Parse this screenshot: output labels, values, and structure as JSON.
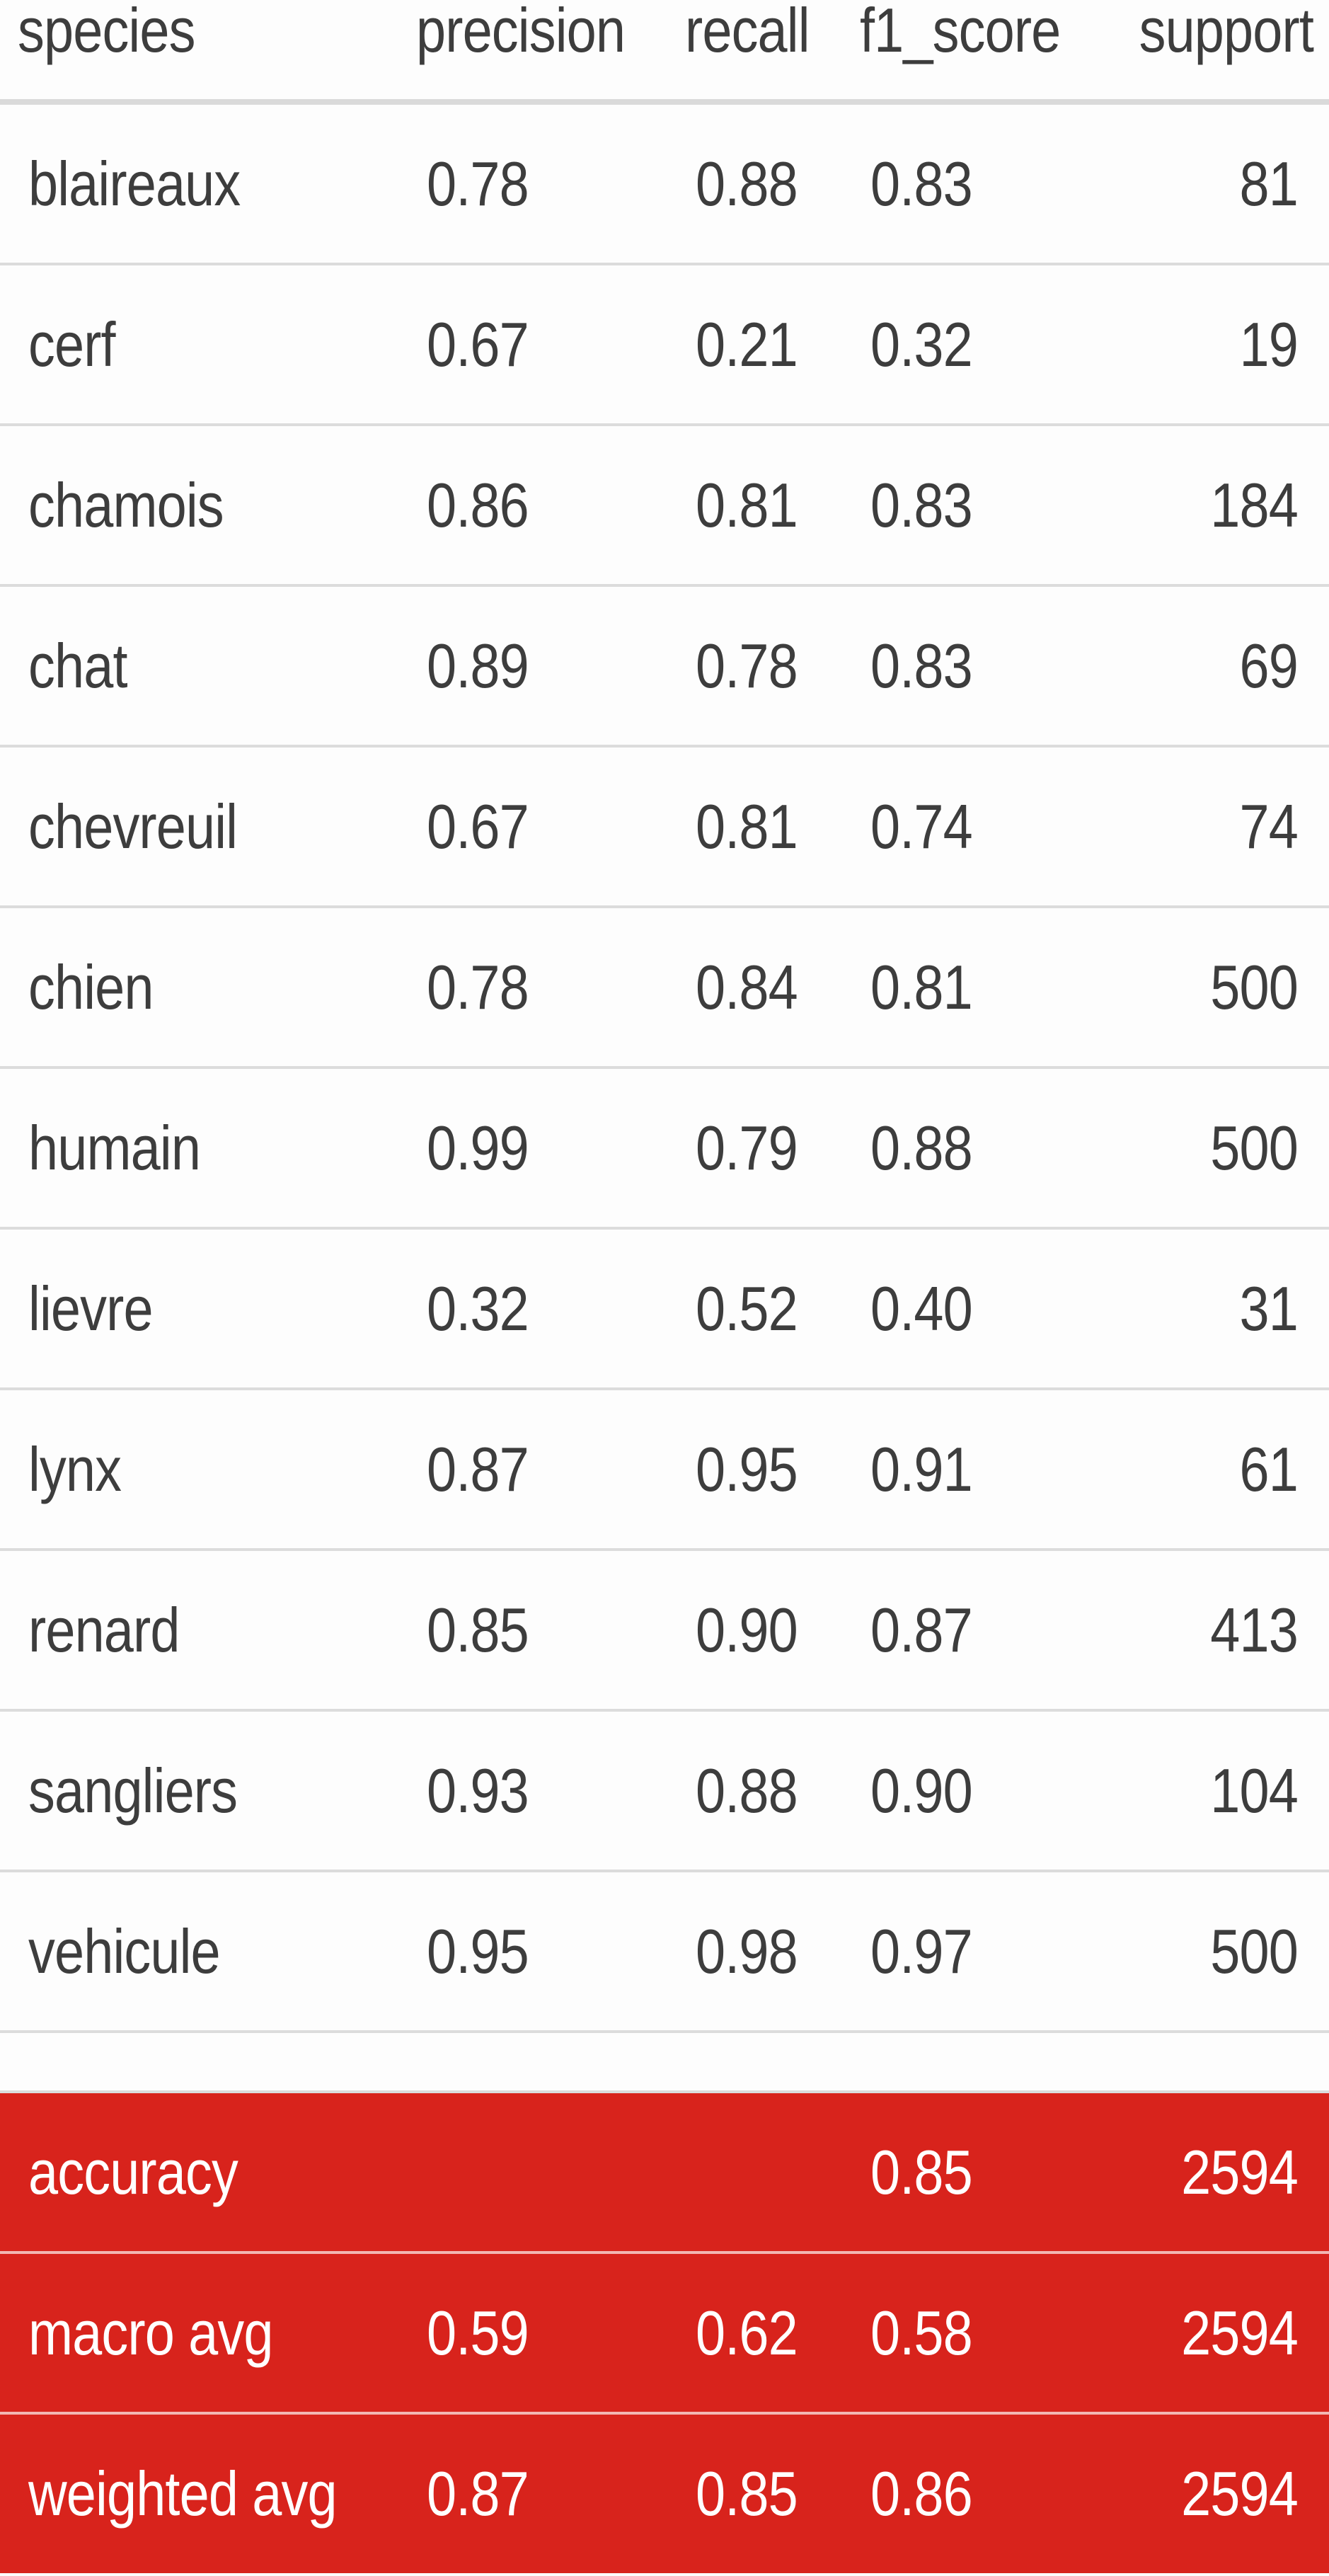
{
  "columns": {
    "species": "species",
    "precision": "precision",
    "recall": "recall",
    "f1_score": "f1_score",
    "support": "support"
  },
  "rows": [
    {
      "species": "blaireaux",
      "precision": "0.78",
      "recall": "0.88",
      "f1_score": "0.83",
      "support": "81"
    },
    {
      "species": "cerf",
      "precision": "0.67",
      "recall": "0.21",
      "f1_score": "0.32",
      "support": "19"
    },
    {
      "species": "chamois",
      "precision": "0.86",
      "recall": "0.81",
      "f1_score": "0.83",
      "support": "184"
    },
    {
      "species": "chat",
      "precision": "0.89",
      "recall": "0.78",
      "f1_score": "0.83",
      "support": "69"
    },
    {
      "species": "chevreuil",
      "precision": "0.67",
      "recall": "0.81",
      "f1_score": "0.74",
      "support": "74"
    },
    {
      "species": "chien",
      "precision": "0.78",
      "recall": "0.84",
      "f1_score": "0.81",
      "support": "500"
    },
    {
      "species": "humain",
      "precision": "0.99",
      "recall": "0.79",
      "f1_score": "0.88",
      "support": "500"
    },
    {
      "species": "lievre",
      "precision": "0.32",
      "recall": "0.52",
      "f1_score": "0.40",
      "support": "31"
    },
    {
      "species": "lynx",
      "precision": "0.87",
      "recall": "0.95",
      "f1_score": "0.91",
      "support": "61"
    },
    {
      "species": "renard",
      "precision": "0.85",
      "recall": "0.90",
      "f1_score": "0.87",
      "support": "413"
    },
    {
      "species": "sangliers",
      "precision": "0.93",
      "recall": "0.88",
      "f1_score": "0.90",
      "support": "104"
    },
    {
      "species": "vehicule",
      "precision": "0.95",
      "recall": "0.98",
      "f1_score": "0.97",
      "support": "500"
    }
  ],
  "summary": [
    {
      "species": "accuracy",
      "precision": "",
      "recall": "",
      "f1_score": "0.85",
      "support": "2594"
    },
    {
      "species": "macro avg",
      "precision": "0.59",
      "recall": "0.62",
      "f1_score": "0.58",
      "support": "2594"
    },
    {
      "species": "weighted avg",
      "precision": "0.87",
      "recall": "0.85",
      "f1_score": "0.86",
      "support": "2594"
    }
  ],
  "colors": {
    "summary_background": "#d8231c",
    "text": "#3d3d3d",
    "divider": "#dcdcdc"
  }
}
